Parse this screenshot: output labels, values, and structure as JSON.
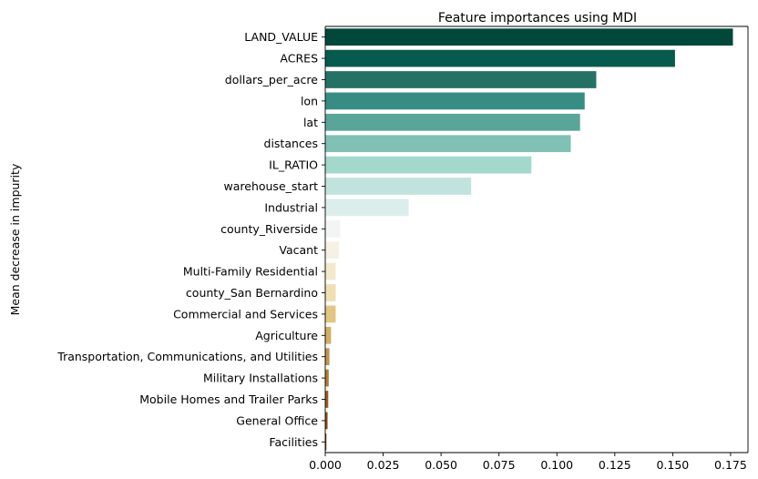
{
  "chart_data": {
    "type": "bar",
    "orientation": "horizontal",
    "title": "Feature importances using MDI",
    "xlabel": "",
    "ylabel": "Mean decrease in impurity",
    "xlim": [
      0,
      0.1825
    ],
    "xticks": [
      "0.000",
      "0.025",
      "0.050",
      "0.075",
      "0.100",
      "0.125",
      "0.150",
      "0.175"
    ],
    "xtick_values": [
      0,
      0.025,
      0.05,
      0.075,
      0.1,
      0.125,
      0.15,
      0.175
    ],
    "grid": false,
    "categories": [
      "LAND_VALUE",
      "ACRES",
      "dollars_per_acre",
      "lon",
      "lat",
      "distances",
      "IL_RATIO",
      "warehouse_start",
      "Industrial",
      "county_Riverside",
      "Vacant",
      "Multi-Family Residential",
      "county_San Bernardino",
      "Commercial and Services",
      "Agriculture",
      "Transportation, Communications, and Utilities",
      "Military Installations",
      "Mobile Homes and Trailer Parks",
      "General Office",
      "Facilities"
    ],
    "values": [
      0.176,
      0.151,
      0.117,
      0.112,
      0.11,
      0.106,
      0.089,
      0.063,
      0.036,
      0.0065,
      0.006,
      0.0045,
      0.0045,
      0.0045,
      0.0025,
      0.0018,
      0.0015,
      0.0013,
      0.001,
      0.0005
    ],
    "colors": [
      "#01473a",
      "#065a4e",
      "#257166",
      "#378d83",
      "#59a59a",
      "#81c0b5",
      "#a3d8cd",
      "#c1e3dd",
      "#dbeeeb",
      "#f2f5f4",
      "#f6f1e3",
      "#f4e9cb",
      "#efdfb2",
      "#e3c682",
      "#d1b063",
      "#c1924e",
      "#b17b33",
      "#9f5c1d",
      "#8b4d12",
      "#6f3a0a"
    ]
  }
}
